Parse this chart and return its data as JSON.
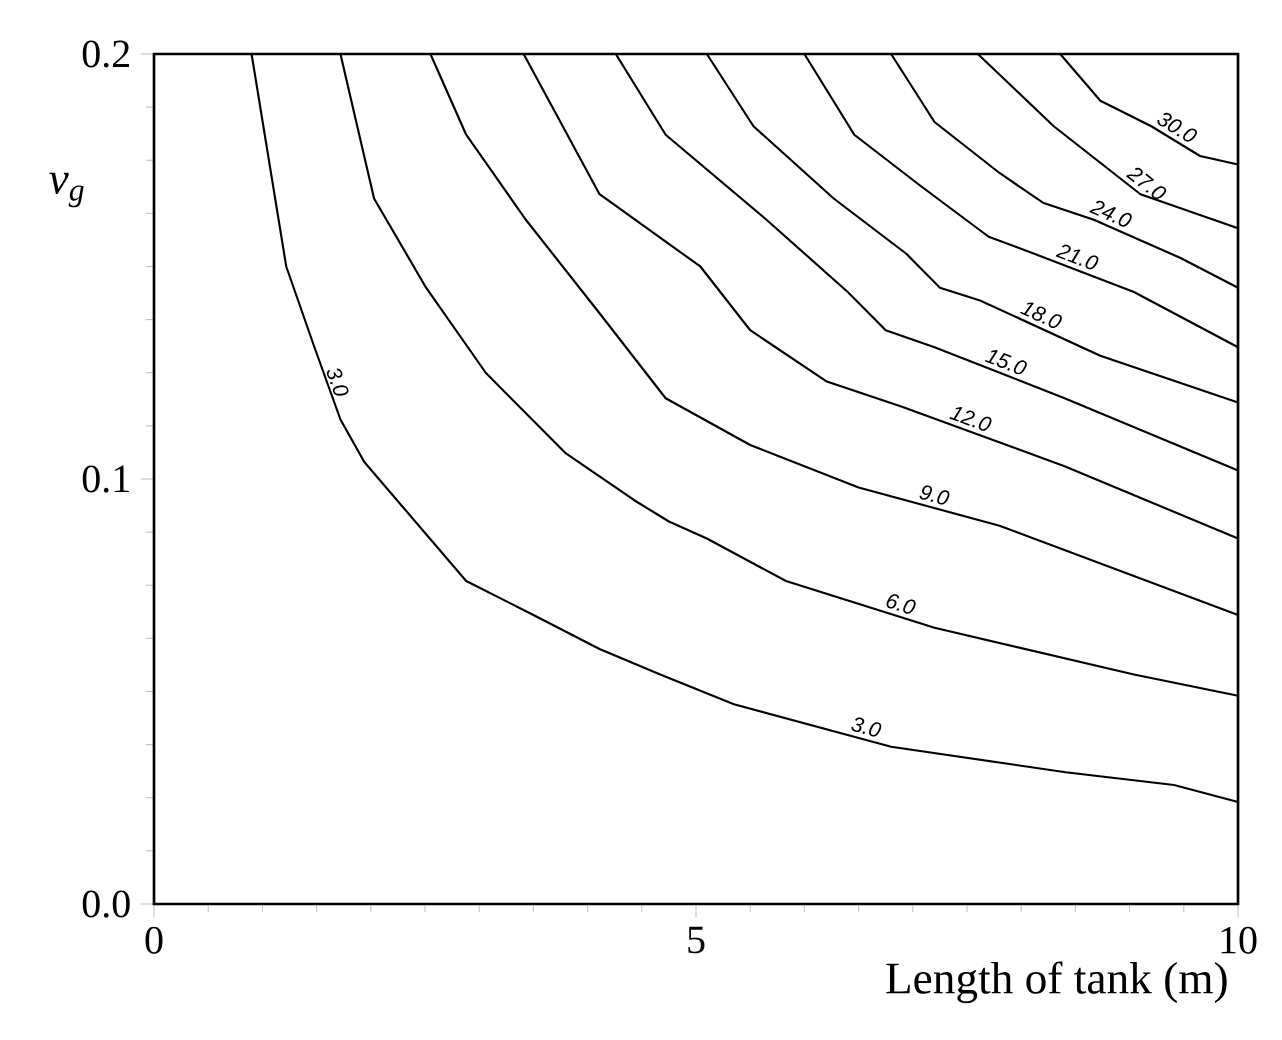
{
  "chart_data": {
    "type": "line",
    "xlabel": "Length of tank (m)",
    "ylabel": "v$_{g}$",
    "xlim": [
      0,
      10
    ],
    "ylim": [
      0.0,
      0.2
    ],
    "xticks": [
      0,
      5,
      10
    ],
    "yticks": [
      {
        "value": 0.0,
        "label": "0.0"
      },
      0.1,
      0.2
    ],
    "series": [
      {
        "name": "3.0",
        "color": "#000000",
        "x": [
          0.9,
          1.22,
          1.48,
          1.72,
          1.94,
          2.88,
          3.5,
          4.11,
          4.67,
          5.35,
          6.8,
          8.41,
          9.41,
          10
        ],
        "values": [
          0.2,
          0.15,
          0.131,
          0.114,
          0.104,
          0.076,
          0.068,
          0.06,
          0.054,
          0.047,
          0.037,
          0.031,
          0.028,
          0.024
        ]
      },
      {
        "name": "6.0",
        "color": "#000000",
        "x": [
          1.72,
          2.03,
          2.51,
          3.06,
          3.8,
          4.43,
          4.75,
          5.1,
          5.83,
          7.2,
          9.04,
          10
        ],
        "values": [
          0.2,
          0.166,
          0.145,
          0.125,
          0.106,
          0.095,
          0.09,
          0.086,
          0.076,
          0.065,
          0.054,
          0.049
        ]
      },
      {
        "name": "9.0",
        "color": "#000000",
        "x": [
          2.55,
          2.88,
          3.43,
          4.11,
          4.72,
          5.5,
          6.5,
          7.8,
          10
        ],
        "values": [
          0.2,
          0.181,
          0.161,
          0.139,
          0.119,
          0.108,
          0.098,
          0.089,
          0.068
        ]
      },
      {
        "name": "12.0",
        "color": "#000000",
        "x": [
          3.41,
          4.11,
          5.04,
          5.5,
          6.2,
          6.9,
          8.4,
          10
        ],
        "values": [
          0.2,
          0.167,
          0.15,
          0.135,
          0.123,
          0.117,
          0.103,
          0.086
        ]
      },
      {
        "name": "15.0",
        "color": "#000000",
        "x": [
          4.26,
          4.72,
          5.65,
          6.4,
          6.75,
          7.2,
          8.4,
          10
        ],
        "values": [
          0.2,
          0.181,
          0.161,
          0.144,
          0.135,
          0.131,
          0.119,
          0.102
        ]
      },
      {
        "name": "18.0",
        "color": "#000000",
        "x": [
          5.1,
          5.53,
          6.27,
          6.94,
          7.25,
          7.62,
          8.73,
          10
        ],
        "values": [
          0.2,
          0.183,
          0.166,
          0.153,
          0.145,
          0.142,
          0.129,
          0.118
        ]
      },
      {
        "name": "21.0",
        "color": "#000000",
        "x": [
          6.0,
          6.46,
          7.07,
          7.7,
          8.12,
          9.04,
          10
        ],
        "values": [
          0.2,
          0.181,
          0.169,
          0.157,
          0.153,
          0.144,
          0.131
        ]
      },
      {
        "name": "24.0",
        "color": "#000000",
        "x": [
          6.8,
          7.2,
          7.8,
          8.2,
          8.67,
          9.47,
          10
        ],
        "values": [
          0.2,
          0.184,
          0.172,
          0.165,
          0.161,
          0.152,
          0.145
        ]
      },
      {
        "name": "27.0",
        "color": "#000000",
        "x": [
          7.6,
          7.93,
          8.3,
          8.7,
          9.1,
          10
        ],
        "values": [
          0.2,
          0.192,
          0.183,
          0.175,
          0.167,
          0.159
        ]
      },
      {
        "name": "30.0",
        "color": "#000000",
        "x": [
          8.36,
          8.73,
          9.2,
          9.65,
          10
        ],
        "values": [
          0.2,
          0.189,
          0.183,
          0.176,
          0.174
        ]
      }
    ],
    "annotations": [
      {
        "text": "3.0",
        "x": 1.6,
        "y": 0.122
      }
    ]
  }
}
